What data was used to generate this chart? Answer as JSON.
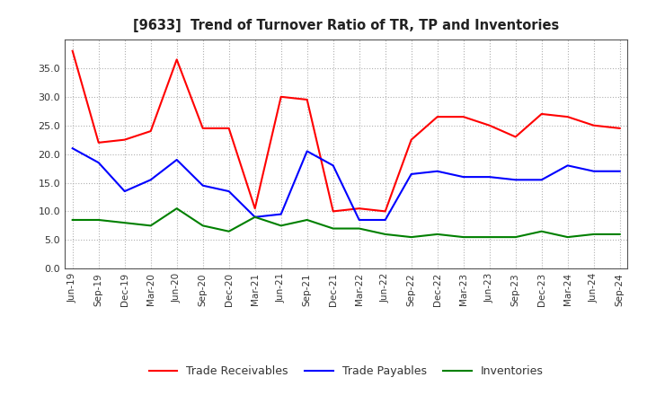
{
  "title": "[9633]  Trend of Turnover Ratio of TR, TP and Inventories",
  "x_labels": [
    "Jun-19",
    "Sep-19",
    "Dec-19",
    "Mar-20",
    "Jun-20",
    "Sep-20",
    "Dec-20",
    "Mar-21",
    "Jun-21",
    "Sep-21",
    "Dec-21",
    "Mar-22",
    "Jun-22",
    "Sep-22",
    "Dec-22",
    "Mar-23",
    "Jun-23",
    "Sep-23",
    "Dec-23",
    "Mar-24",
    "Jun-24",
    "Sep-24"
  ],
  "trade_receivables": [
    38.0,
    22.0,
    22.5,
    24.0,
    36.5,
    24.5,
    24.5,
    10.5,
    30.0,
    29.5,
    10.0,
    10.5,
    10.0,
    22.5,
    26.5,
    26.5,
    25.0,
    23.0,
    27.0,
    26.5,
    25.0,
    24.5
  ],
  "trade_payables": [
    21.0,
    18.5,
    13.5,
    15.5,
    19.0,
    14.5,
    13.5,
    9.0,
    9.5,
    20.5,
    18.0,
    8.5,
    8.5,
    16.5,
    17.0,
    16.0,
    16.0,
    15.5,
    15.5,
    18.0,
    17.0,
    17.0
  ],
  "inventories": [
    8.5,
    8.5,
    8.0,
    7.5,
    10.5,
    7.5,
    6.5,
    9.0,
    7.5,
    8.5,
    7.0,
    7.0,
    6.0,
    5.5,
    6.0,
    5.5,
    5.5,
    5.5,
    6.5,
    5.5,
    6.0,
    6.0
  ],
  "ylim": [
    0.0,
    40.0
  ],
  "yticks": [
    0.0,
    5.0,
    10.0,
    15.0,
    20.0,
    25.0,
    30.0,
    35.0
  ],
  "color_tr": "#ff0000",
  "color_tp": "#0000ff",
  "color_inv": "#008000",
  "legend_labels": [
    "Trade Receivables",
    "Trade Payables",
    "Inventories"
  ],
  "bg_color": "#ffffff",
  "grid_color": "#b0b0b0"
}
